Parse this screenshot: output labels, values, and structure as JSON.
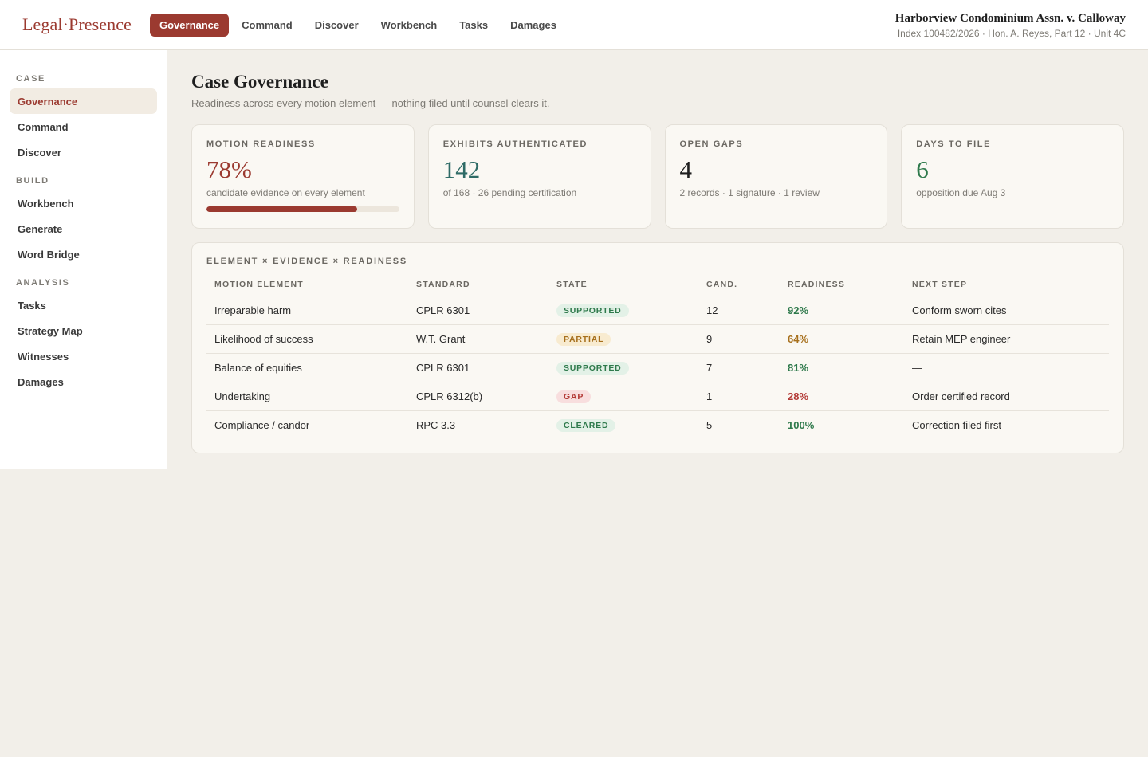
{
  "brand": {
    "logo": "Legal·Presence"
  },
  "nav": {
    "items": [
      {
        "label": "Governance",
        "active": true
      },
      {
        "label": "Command"
      },
      {
        "label": "Discover"
      },
      {
        "label": "Workbench"
      },
      {
        "label": "Tasks"
      },
      {
        "label": "Damages"
      }
    ]
  },
  "case": {
    "title": "Harborview Condominium Assn. v. Calloway",
    "subtitle": "Index 100482/2026 · Hon. A. Reyes, Part 12 · Unit 4C"
  },
  "sidebar": {
    "sections": [
      {
        "label": "CASE",
        "items": [
          {
            "label": "Governance",
            "active": true
          },
          {
            "label": "Command"
          },
          {
            "label": "Discover"
          }
        ]
      },
      {
        "label": "BUILD",
        "items": [
          {
            "label": "Workbench"
          },
          {
            "label": "Generate"
          },
          {
            "label": "Word Bridge"
          }
        ]
      },
      {
        "label": "ANALYSIS",
        "items": [
          {
            "label": "Tasks"
          },
          {
            "label": "Strategy Map"
          },
          {
            "label": "Witnesses"
          },
          {
            "label": "Damages"
          }
        ]
      }
    ]
  },
  "page": {
    "title": "Case Governance",
    "subtitle": "Readiness across every motion element — nothing filed until counsel clears it."
  },
  "kpis": [
    {
      "label": "MOTION READINESS",
      "value": "78%",
      "note": "candidate evidence on every element",
      "color": "#9b3a30",
      "progress": 0.78
    },
    {
      "label": "EXHIBITS AUTHENTICATED",
      "value": "142",
      "note": "of 168 · 26 pending certification",
      "color": "#2e6b66"
    },
    {
      "label": "OPEN GAPS",
      "value": "4",
      "note": "2 records · 1 signature · 1 review",
      "color": "#1e1e1e"
    },
    {
      "label": "DAYS TO FILE",
      "value": "6",
      "note": "opposition due Aug 3",
      "color": "#2f7a4c"
    }
  ],
  "table": {
    "title": "ELEMENT × EVIDENCE × READINESS",
    "columns": [
      "MOTION ELEMENT",
      "STANDARD",
      "STATE",
      "CAND.",
      "READINESS",
      "NEXT STEP"
    ],
    "rows": [
      {
        "element": "Irreparable harm",
        "standard": "CPLR 6301",
        "state": "SUPPORTED",
        "state_kind": "supported",
        "cand": "12",
        "readiness": "92%",
        "readiness_color": "#2f7a4c",
        "next": "Conform sworn cites"
      },
      {
        "element": "Likelihood of success",
        "standard": "W.T. Grant",
        "state": "PARTIAL",
        "state_kind": "partial",
        "cand": "9",
        "readiness": "64%",
        "readiness_color": "#a7701d",
        "next": "Retain MEP engineer"
      },
      {
        "element": "Balance of equities",
        "standard": "CPLR 6301",
        "state": "SUPPORTED",
        "state_kind": "supported",
        "cand": "7",
        "readiness": "81%",
        "readiness_color": "#2f7a4c",
        "next": "—"
      },
      {
        "element": "Undertaking",
        "standard": "CPLR 6312(b)",
        "state": "GAP",
        "state_kind": "gap",
        "cand": "1",
        "readiness": "28%",
        "readiness_color": "#b33a36",
        "next": "Order certified record"
      },
      {
        "element": "Compliance / candor",
        "standard": "RPC 3.3",
        "state": "CLEARED",
        "state_kind": "cleared",
        "cand": "5",
        "readiness": "100%",
        "readiness_color": "#2f7a4c",
        "next": "Correction filed first"
      }
    ]
  }
}
